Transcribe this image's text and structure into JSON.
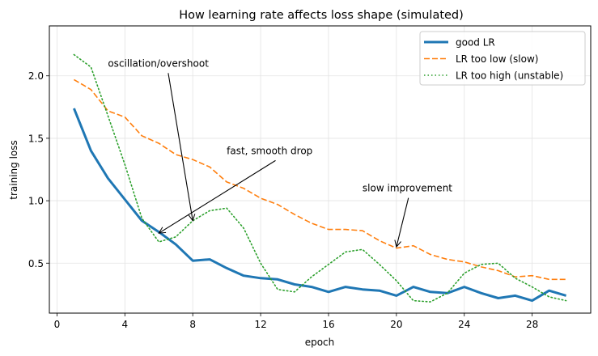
{
  "chart_data": {
    "type": "line",
    "title": "How learning rate affects loss shape (simulated)",
    "xlabel": "epoch",
    "ylabel": "training loss",
    "xlim": [
      -0.45,
      31.45
    ],
    "ylim": [
      0.1,
      2.4
    ],
    "xticks": [
      0,
      4,
      8,
      12,
      16,
      20,
      24,
      28
    ],
    "yticks": [
      0.5,
      1.0,
      1.5,
      2.0
    ],
    "ytick_labels": [
      "0.5",
      "1.0",
      "1.5",
      "2.0"
    ],
    "grid": true,
    "legend_position": "top-right",
    "x": [
      1,
      2,
      3,
      4,
      5,
      6,
      7,
      8,
      9,
      10,
      11,
      12,
      13,
      14,
      15,
      16,
      17,
      18,
      19,
      20,
      21,
      22,
      23,
      24,
      25,
      26,
      27,
      28,
      29,
      30
    ],
    "series": [
      {
        "name": "good LR",
        "color": "#1f77b4",
        "style": "solid",
        "values": [
          1.74,
          1.4,
          1.18,
          1.01,
          0.84,
          0.75,
          0.65,
          0.52,
          0.53,
          0.46,
          0.4,
          0.38,
          0.37,
          0.33,
          0.31,
          0.27,
          0.31,
          0.29,
          0.28,
          0.24,
          0.31,
          0.27,
          0.26,
          0.31,
          0.26,
          0.22,
          0.24,
          0.2,
          0.28,
          0.24
        ]
      },
      {
        "name": "LR too low (slow)",
        "color": "#ff7f0e",
        "style": "dashed",
        "values": [
          1.97,
          1.89,
          1.72,
          1.67,
          1.52,
          1.46,
          1.37,
          1.33,
          1.27,
          1.15,
          1.1,
          1.02,
          0.97,
          0.89,
          0.82,
          0.77,
          0.77,
          0.76,
          0.68,
          0.62,
          0.64,
          0.57,
          0.53,
          0.51,
          0.47,
          0.44,
          0.39,
          0.4,
          0.37,
          0.37
        ]
      },
      {
        "name": "LR too high (unstable)",
        "color": "#2ca02c",
        "style": "dotted",
        "values": [
          2.17,
          2.07,
          1.68,
          1.29,
          0.86,
          0.67,
          0.71,
          0.84,
          0.92,
          0.94,
          0.78,
          0.5,
          0.29,
          0.27,
          0.39,
          0.49,
          0.59,
          0.61,
          0.49,
          0.36,
          0.2,
          0.19,
          0.26,
          0.42,
          0.49,
          0.5,
          0.38,
          0.31,
          0.23,
          0.2
        ]
      }
    ],
    "annotations": [
      {
        "text": "oscillation/overshoot",
        "text_xy": [
          3,
          2.1
        ],
        "arrow_to": [
          8,
          0.84
        ]
      },
      {
        "text": "fast, smooth drop",
        "text_xy": [
          10,
          1.4
        ],
        "arrow_to": [
          6,
          0.74
        ]
      },
      {
        "text": "slow improvement",
        "text_xy": [
          18,
          1.1
        ],
        "arrow_to": [
          20,
          0.63
        ]
      }
    ]
  }
}
